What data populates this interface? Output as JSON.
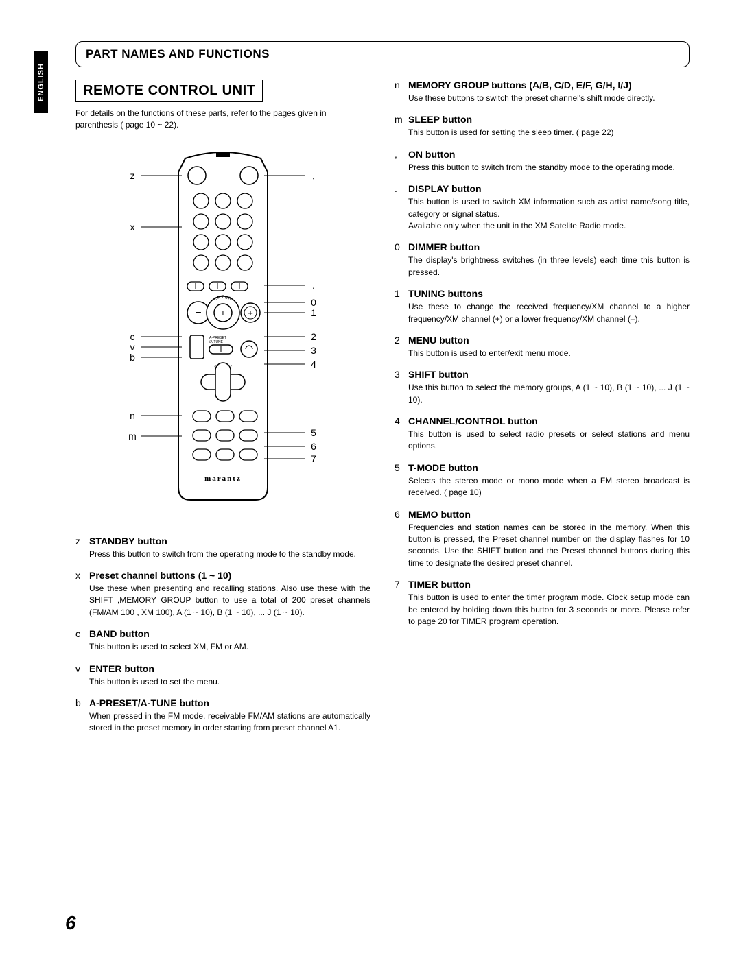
{
  "tab_label": "ENGLISH",
  "section_title": "PART NAMES AND FUNCTIONS",
  "rcu_title": "REMOTE CONTROL UNIT",
  "intro": "For details on the functions of these parts, refer to the pages given in parenthesis (     page 10 ~ 22).",
  "brand": "marantz",
  "page_number": "6",
  "diagram": {
    "left_refs": [
      "z",
      "x",
      "c",
      "v",
      "b",
      "n",
      "m"
    ],
    "right_refs": [
      ",",
      ".",
      "0",
      "1",
      "2",
      "3",
      "4",
      "5",
      "6",
      "7"
    ],
    "inner_labels": {
      "enter": "ENTER",
      "apreset": "A-PRESET\n/A-TUNE",
      "channel": "CHANNEL/\nCONTROL"
    }
  },
  "left_items": [
    {
      "ref": "z",
      "title": "STANDBY button",
      "body": "Press this button to switch from the operating mode to the standby mode."
    },
    {
      "ref": "x",
      "title": "Preset channel buttons (1 ~ 10)",
      "body": "Use these when presenting and recalling stations. Also use these with the SHIFT ,MEMORY GROUP button to use a total of 200 preset channels (FM/AM 100 , XM 100), A (1 ~ 10), B (1 ~ 10), ... J (1 ~ 10)."
    },
    {
      "ref": "c",
      "title": "BAND button",
      "body": "This button is used to select XM, FM or AM."
    },
    {
      "ref": "v",
      "title": "ENTER button",
      "body": "This button is used to set the menu."
    },
    {
      "ref": "b",
      "title": "A-PRESET/A-TUNE button",
      "body": "When pressed in the FM mode, receivable FM/AM stations are automatically stored in the preset memory in order starting from preset channel A1."
    }
  ],
  "right_items": [
    {
      "ref": "n",
      "title": "MEMORY GROUP buttons (A/B, C/D, E/F, G/H, I/J)",
      "body": "Use these buttons to switch the preset channel's shift mode directly."
    },
    {
      "ref": "m",
      "title": "SLEEP button",
      "body": "This button is used for setting the sleep timer. (      page 22)"
    },
    {
      "ref": ",",
      "title": "ON button",
      "body": "Press this button to switch from the standby mode to the operating mode."
    },
    {
      "ref": ".",
      "title": "DISPLAY button",
      "body": "This button is used to switch XM information such as artist name/song title, category or signal status.\nAvailable only when the unit in the XM Satelite Radio mode."
    },
    {
      "ref": "0",
      "title": "DIMMER button",
      "body": "The display's brightness switches (in three levels) each time this button is pressed."
    },
    {
      "ref": "1",
      "title": "TUNING buttons",
      "body": "Use these to change the received frequency/XM channel to a higher frequency/XM channel (+) or a lower frequency/XM channel (–)."
    },
    {
      "ref": "2",
      "title": "MENU button",
      "body": "This button is used to enter/exit menu mode."
    },
    {
      "ref": "3",
      "title": "SHIFT button",
      "body": "Use this button to select the memory groups, A (1 ~ 10), B (1 ~ 10), ... J (1 ~ 10)."
    },
    {
      "ref": "4",
      "title": "CHANNEL/CONTROL button",
      "body": "This button is used to select radio presets or select stations and menu options."
    },
    {
      "ref": "5",
      "title": "T-MODE button",
      "body": "Selects the stereo mode or mono mode when a FM stereo broadcast is received. (     page 10)"
    },
    {
      "ref": "6",
      "title": "MEMO button",
      "body": "Frequencies and station names can be stored in the memory. When this button is pressed, the Preset channel number on the display flashes for 10 seconds. Use the SHIFT button and the Preset channel buttons during this time to designate the desired preset channel."
    },
    {
      "ref": "7",
      "title": "TIMER button",
      "body": "This button is used to enter the timer program mode. Clock setup mode can be entered by holding down this button for 3 seconds or more. Please refer to page 20 for TIMER program operation."
    }
  ]
}
